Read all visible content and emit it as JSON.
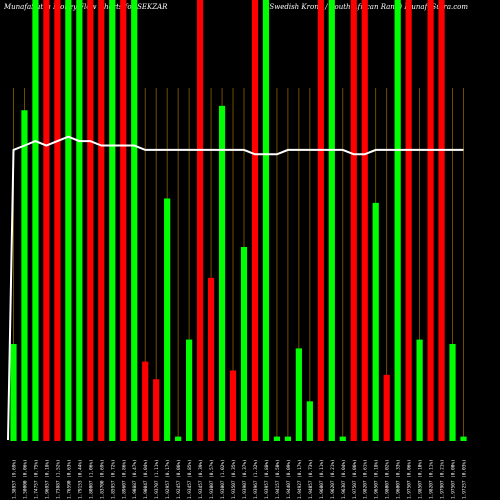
{
  "header": {
    "left": "MunafaSutra Money Flow Charts for SEKZAR",
    "right": "(Swedish Krona / South African Rand) MunafaSutra.com"
  },
  "colors": {
    "background": "#000000",
    "up": "#00ff00",
    "down": "#ff0000",
    "grid": "#8a6000",
    "line": "#ffffff",
    "label": "#ffffff"
  },
  "chart_data": {
    "type": "bar",
    "title": "MunafaSutra Money Flow Charts for SEKZAR",
    "subtitle": "(Swedish Krona / South African Rand) MunafaSutra.com",
    "ylim": [
      0,
      100
    ],
    "categories": [
      "1.38957 (9.69%)",
      "1.50000 (0.06%)",
      "1.74757 (0.75%)",
      "1.96957 (0.18%)",
      "1.73887 (1.52%)",
      "1.76590 (0.63%)",
      "1.79153 (0.44%)",
      "1.80007 (1.06%)",
      "1.83700 (0.69%)",
      "1.85957 (0.72%)",
      "1.89607 (0.86%)",
      "1.90887 (0.47%)",
      "1.90047 (0.04%)",
      "1.93707 (1.11%)",
      "1.92957 (0.17%)",
      "1.92457 (0.06%)",
      "1.93457 (0.85%)",
      "1.93457 (0.39%)",
      "1.93007 (0.57%)",
      "1.93007 (1.02%)",
      "1.93507 (0.35%)",
      "1.93907 (0.37%)",
      "1.93967 (1.32%)",
      "1.93957 (0.88%)",
      "1.94157 (0.50%)",
      "1.94407 (0.09%)",
      "1.94927 (0.17%)",
      "1.94057 (0.73%)",
      "1.96007 (0.11%)",
      "1.96207 (0.21%)",
      "1.96307 (0.04%)",
      "1.97507 (0.06%)",
      "1.98207 (0.61%)",
      "1.96507 (0.18%)",
      "1.98007 (0.02%)",
      "1.96007 (0.33%)",
      "1.97507 (0.06%)",
      "1.98507 (0.10%)",
      "1.98207 (0.11%)",
      "1.97907 (0.21%)",
      "1.97507 (0.00%)",
      "1.97257 (0.03%)"
    ],
    "series": [
      {
        "values": [
          22,
          75,
          100,
          100,
          100,
          100,
          100,
          100,
          100,
          100,
          100,
          100,
          18,
          14,
          55,
          1,
          23,
          100,
          37,
          76,
          16,
          44,
          100,
          100,
          1,
          1,
          21,
          9,
          100,
          100,
          1,
          100,
          100,
          54,
          15,
          100,
          100,
          23,
          100,
          100,
          22,
          1
        ],
        "colors": [
          "up",
          "up",
          "up",
          "down",
          "down",
          "up",
          "up",
          "down",
          "down",
          "up",
          "down",
          "up",
          "down",
          "down",
          "up",
          "up",
          "up",
          "down",
          "down",
          "up",
          "down",
          "up",
          "down",
          "up",
          "up",
          "up",
          "up",
          "up",
          "down",
          "up",
          "up",
          "down",
          "down",
          "up",
          "down",
          "up",
          "down",
          "up",
          "down",
          "down",
          "up",
          "up"
        ]
      },
      {
        "name": "",
        "kind": "line",
        "values": [
          66,
          67,
          68,
          67,
          68,
          69,
          68,
          68,
          67,
          67,
          67,
          67,
          66,
          66,
          66,
          66,
          66,
          66,
          66,
          66,
          66,
          66,
          65,
          65,
          65,
          66,
          66,
          66,
          66,
          66,
          66,
          65,
          65,
          66,
          66,
          66,
          66,
          66,
          66,
          66,
          66,
          66
        ]
      }
    ],
    "grid": true,
    "gridlines": "vertical"
  }
}
